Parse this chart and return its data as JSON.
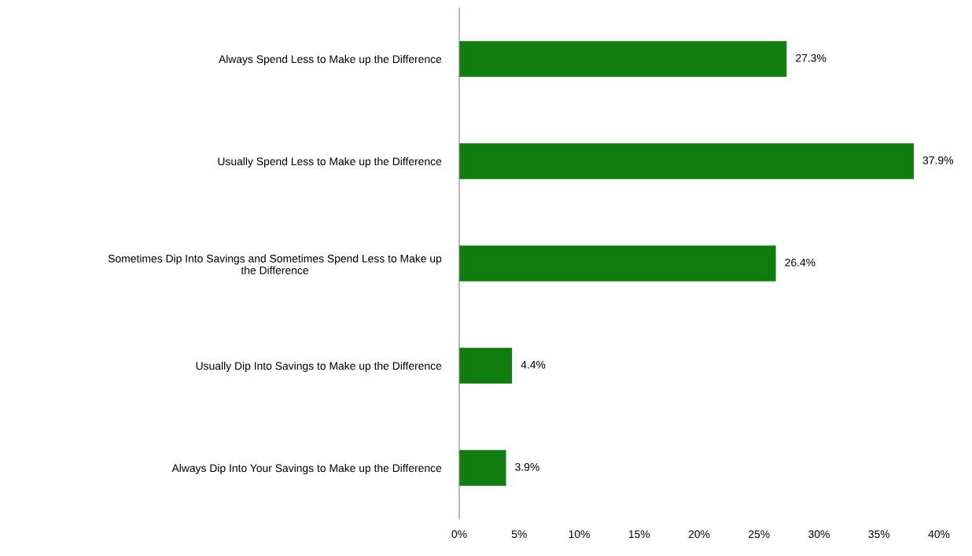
{
  "chart_data": {
    "type": "bar",
    "orientation": "horizontal",
    "categories": [
      "Always Spend Less to Make up the Difference",
      "Usually Spend Less to Make up the Difference",
      "Sometimes Dip Into Savings and Sometimes Spend Less to Make up\nthe Difference",
      "Usually Dip Into Savings to Make up the Difference",
      "Always Dip Into Your Savings to Make up the Difference"
    ],
    "values": [
      27.3,
      37.9,
      26.4,
      4.4,
      3.9
    ],
    "value_labels": [
      "27.3%",
      "37.9%",
      "26.4%",
      "4.4%",
      "3.9%"
    ],
    "color": "#117d11",
    "xlim": [
      0,
      40
    ],
    "xticks": [
      {
        "value": 0,
        "label": "0%"
      },
      {
        "value": 5,
        "label": "5%"
      },
      {
        "value": 10,
        "label": "10%"
      },
      {
        "value": 15,
        "label": "15%"
      },
      {
        "value": 20,
        "label": "20%"
      },
      {
        "value": 25,
        "label": "25%"
      },
      {
        "value": 30,
        "label": "30%"
      },
      {
        "value": 35,
        "label": "35%"
      },
      {
        "value": 40,
        "label": "40%"
      }
    ],
    "grid": false,
    "legend": false
  }
}
